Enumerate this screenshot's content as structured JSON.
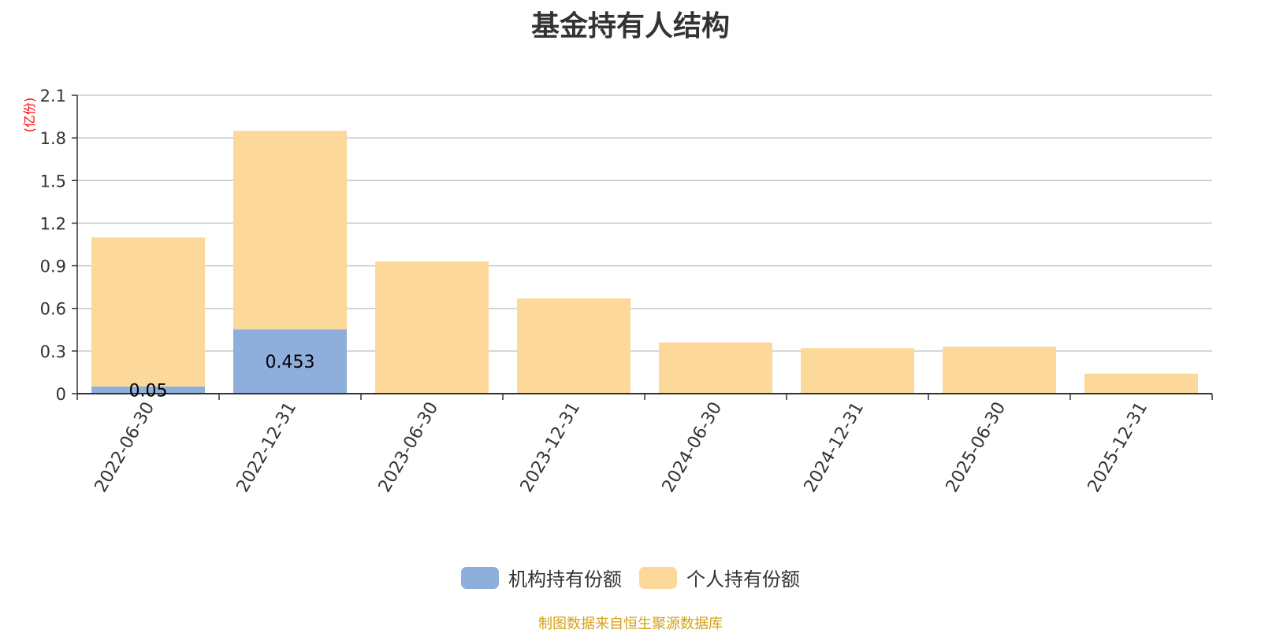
{
  "chart_data": {
    "type": "bar",
    "stacked": true,
    "title": "基金持有人结构",
    "ylabel": "(亿份)",
    "xlabel": "",
    "ylim": [
      0,
      2.1
    ],
    "yticks": [
      "0",
      "0.3",
      "0.6",
      "0.9",
      "1.2",
      "1.5",
      "1.8",
      "2.1"
    ],
    "categories": [
      "2022-06-30",
      "2022-12-31",
      "2023-06-30",
      "2023-12-31",
      "2024-06-30",
      "2024-12-31",
      "2025-06-30",
      "2025-12-31"
    ],
    "series": [
      {
        "name": "机构持有份额",
        "color": "#8eaedb",
        "values": [
          0.05,
          0.453,
          0,
          0,
          0,
          0,
          0,
          0
        ],
        "labels": [
          "0.05",
          "0.453",
          "",
          "",
          "",
          "",
          "",
          ""
        ]
      },
      {
        "name": "个人持有份额",
        "color": "#fdd89b",
        "values": [
          1.05,
          1.397,
          0.93,
          0.67,
          0.36,
          0.32,
          0.33,
          0.14
        ],
        "labels": [
          "",
          "",
          "",
          "",
          "",
          "",
          "",
          ""
        ]
      }
    ],
    "grid": true,
    "legend": "bottom-center"
  },
  "source_note": "制图数据来自恒生聚源数据库",
  "colors": {
    "axis": "#333333",
    "grid": "#c8c8c8",
    "ylabel": "#ff0000",
    "note": "#d4a017"
  }
}
